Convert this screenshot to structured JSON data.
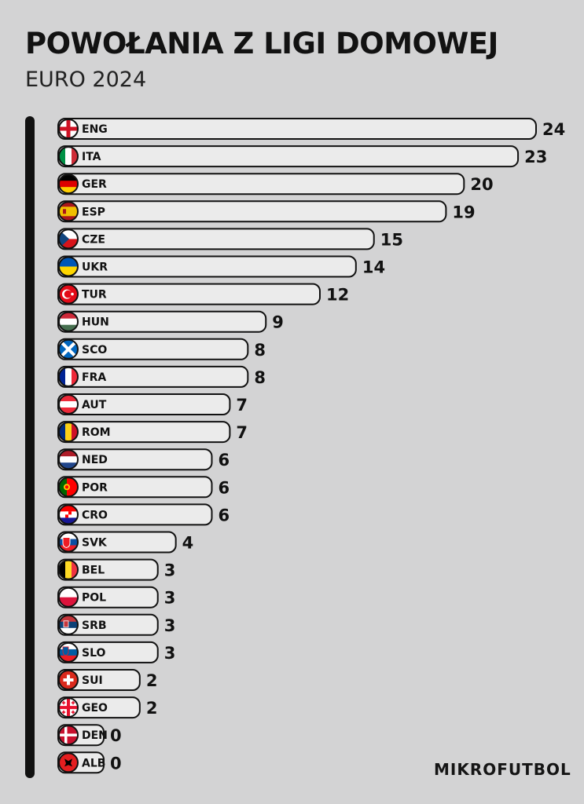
{
  "header": {
    "title": "POWOŁANIA Z LIGI DOMOWEJ",
    "subtitle": "EURO 2024"
  },
  "branding": {
    "label": "MIKROFUTBOL"
  },
  "colors": {
    "background": "#d3d3d4",
    "bar_fill": "#ebebeb",
    "bar_stroke": "#111111",
    "text": "#111111"
  },
  "chart_data": {
    "type": "bar",
    "orientation": "horizontal",
    "title": "POWOŁANIA Z LIGI DOMOWEJ",
    "subtitle": "EURO 2024",
    "xlabel": "",
    "ylabel": "",
    "xlim": [
      0,
      24
    ],
    "grid": false,
    "categories": [
      "ENG",
      "ITA",
      "GER",
      "ESP",
      "CZE",
      "UKR",
      "TUR",
      "HUN",
      "SCO",
      "FRA",
      "AUT",
      "ROM",
      "NED",
      "POR",
      "CRO",
      "SVK",
      "BEL",
      "POL",
      "SRB",
      "SLO",
      "SUI",
      "GEO",
      "DEN",
      "ALB"
    ],
    "values": [
      24,
      23,
      20,
      19,
      15,
      14,
      12,
      9,
      8,
      8,
      7,
      7,
      6,
      6,
      6,
      4,
      3,
      3,
      3,
      3,
      2,
      2,
      0,
      0
    ],
    "flags": [
      "england-flag-icon",
      "italy-flag-icon",
      "germany-flag-icon",
      "spain-flag-icon",
      "czechia-flag-icon",
      "ukraine-flag-icon",
      "turkey-flag-icon",
      "hungary-flag-icon",
      "scotland-flag-icon",
      "france-flag-icon",
      "austria-flag-icon",
      "romania-flag-icon",
      "netherlands-flag-icon",
      "portugal-flag-icon",
      "croatia-flag-icon",
      "slovakia-flag-icon",
      "belgium-flag-icon",
      "poland-flag-icon",
      "serbia-flag-icon",
      "slovenia-flag-icon",
      "switzerland-flag-icon",
      "georgia-flag-icon",
      "denmark-flag-icon",
      "albania-flag-icon"
    ]
  }
}
